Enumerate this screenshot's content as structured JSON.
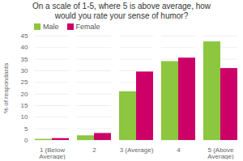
{
  "chart_data": {
    "type": "bar",
    "title": "On a scale of 1-5, where 5 is above average, how\nwould you rate your sense of humor?",
    "categories": [
      "1 (Below\nAverage)",
      "2",
      "3 (Average)",
      "4",
      "5 (Above\nAverage)"
    ],
    "series": [
      {
        "name": "Male",
        "color": "#8dc63f",
        "values": [
          0.5,
          2.0,
          21.0,
          34.0,
          42.5
        ]
      },
      {
        "name": "Female",
        "color": "#cc0066",
        "values": [
          0.8,
          3.0,
          29.5,
          35.5,
          31.0
        ]
      }
    ],
    "ylabel": "% of respondants",
    "ylim": [
      0,
      45
    ],
    "yticks": [
      0,
      5,
      10,
      15,
      20,
      25,
      30,
      35,
      40,
      45
    ],
    "grid": true,
    "legend": "upper left"
  }
}
